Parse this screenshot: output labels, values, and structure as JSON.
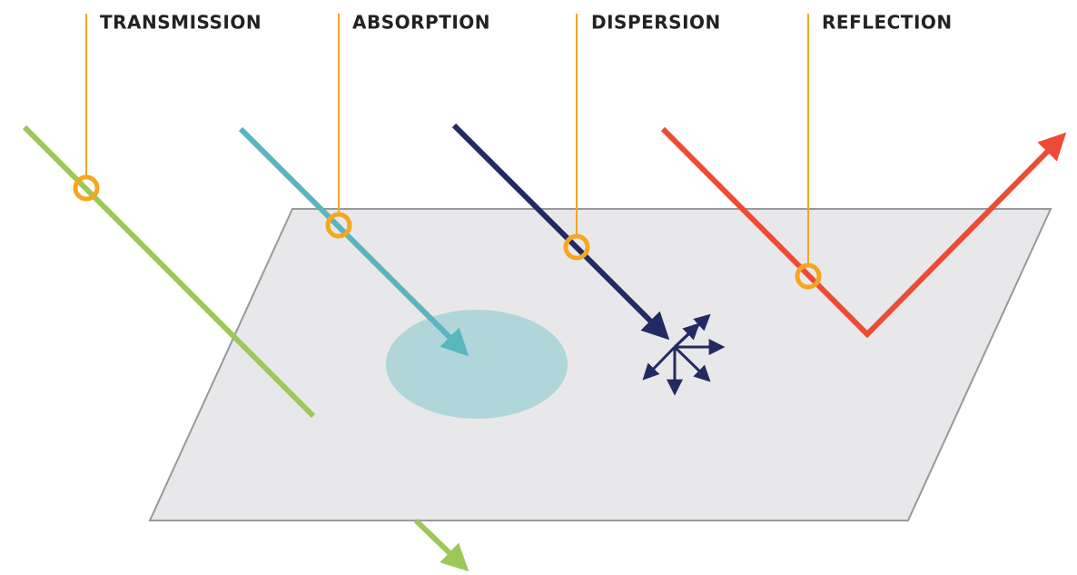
{
  "labels": [
    "TRANSMISSION",
    "ABSORPTION",
    "DISPERSION",
    "REFLECTION"
  ]
}
